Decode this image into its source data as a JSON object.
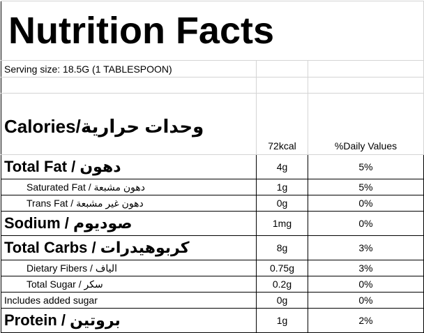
{
  "title": "Nutrition Facts",
  "serving_size": "Serving size:  18.5G  (1 TABLESPOON)",
  "table": {
    "header": [
      "Calories/وحدات حرارية",
      "72kcal",
      "%Daily Values"
    ],
    "rows": [
      [
        "Total Fat / دهون",
        "4g",
        "5%"
      ],
      [
        "Saturated Fat / دهون مشبعة",
        "1g",
        "5%"
      ],
      [
        "Trans Fat / دهون غير مشبعة",
        "0g",
        "0%"
      ],
      [
        "Sodium / صوديوم",
        "1mg",
        "0%"
      ],
      [
        "Total Carbs / كربوهيدرات",
        "8g",
        "3%"
      ],
      [
        "Dietary Fibers / الياف",
        "0.75g",
        "3%"
      ],
      [
        "Total Sugar / سكر",
        "0.2g",
        "0%"
      ],
      [
        "Includes added sugar",
        "0g",
        "0%"
      ],
      [
        "Protein / بروتين",
        "1g",
        "2%"
      ]
    ]
  }
}
